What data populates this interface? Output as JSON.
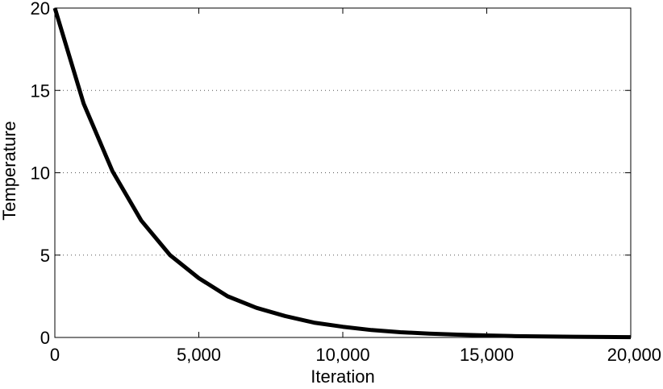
{
  "chart_data": {
    "type": "line",
    "title": "",
    "xlabel": "Iteration",
    "ylabel": "Temperature",
    "xlim": [
      0,
      20000
    ],
    "ylim": [
      0,
      20
    ],
    "x_ticks": [
      0,
      5000,
      10000,
      15000,
      20000
    ],
    "x_tick_labels": [
      "0",
      "5,000",
      "10,000",
      "15,000",
      "20,000"
    ],
    "y_ticks": [
      0,
      5,
      10,
      15,
      20
    ],
    "y_tick_labels": [
      "0",
      "5",
      "10",
      "15",
      "20"
    ],
    "grid": "horizontal dotted",
    "series": [
      {
        "color": "#000000",
        "x": [
          0,
          1000,
          2000,
          3000,
          4000,
          5000,
          6000,
          7000,
          8000,
          9000,
          10000,
          11000,
          12000,
          13000,
          14000,
          15000,
          16000,
          17000,
          18000,
          19000,
          20000
        ],
        "y": [
          20,
          14.2,
          10.1,
          7.1,
          5.0,
          3.6,
          2.5,
          1.8,
          1.3,
          0.9,
          0.65,
          0.45,
          0.32,
          0.23,
          0.17,
          0.12,
          0.08,
          0.06,
          0.04,
          0.03,
          0.02
        ]
      }
    ]
  }
}
